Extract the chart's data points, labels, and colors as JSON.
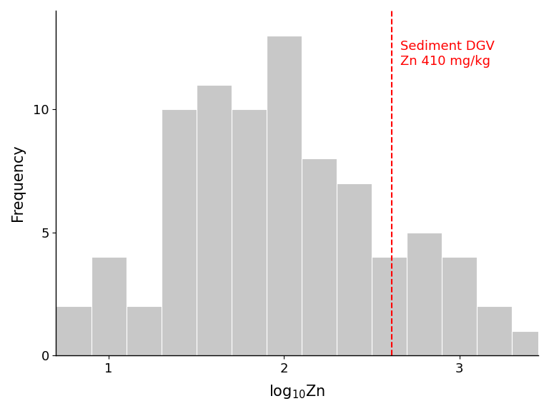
{
  "title": "",
  "ylabel": "Frequency",
  "bar_color": "#c8c8c8",
  "bar_edgecolor": "#ffffff",
  "threshold_x": 2.6128,
  "threshold_color": "red",
  "threshold_label_line1": "Sediment DGV",
  "threshold_label_line2": "Zn 410 mg/kg",
  "threshold_label_color": "red",
  "threshold_label_fontsize": 13,
  "bin_edges": [
    0.7,
    0.9,
    1.1,
    1.3,
    1.5,
    1.7,
    1.9,
    2.1,
    2.3,
    2.5,
    2.7,
    2.9,
    3.1,
    3.3,
    3.5
  ],
  "frequencies": [
    2,
    4,
    2,
    10,
    11,
    10,
    13,
    8,
    7,
    4,
    5,
    4,
    2,
    1
  ],
  "xlim": [
    0.7,
    3.45
  ],
  "ylim": [
    0,
    14
  ],
  "yticks": [
    0,
    5,
    10
  ],
  "xticks": [
    1,
    2,
    3
  ],
  "background_color": "#ffffff",
  "axis_label_fontsize": 15,
  "tick_fontsize": 13
}
